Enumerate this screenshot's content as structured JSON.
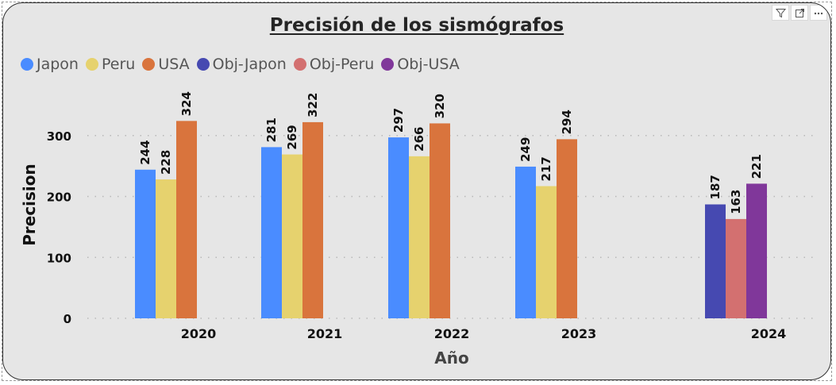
{
  "toolbar": {
    "icons": [
      "filter-icon",
      "focus-mode-icon",
      "more-options-icon"
    ]
  },
  "chart_data": {
    "type": "bar",
    "title": "Precisión de los sismógrafos",
    "xlabel": "Año",
    "ylabel": "Precision",
    "categories": [
      "2020",
      "2021",
      "2022",
      "2023",
      "2024"
    ],
    "yticks": [
      0,
      100,
      200,
      300
    ],
    "ylim": [
      0,
      340
    ],
    "grid": true,
    "legend_position": "top-left",
    "series": [
      {
        "name": "Japon",
        "color": "#4a8cff",
        "values": [
          244,
          281,
          297,
          249,
          null
        ]
      },
      {
        "name": "Peru",
        "color": "#e6d26e",
        "values": [
          228,
          269,
          266,
          217,
          null
        ]
      },
      {
        "name": "USA",
        "color": "#d9743d",
        "values": [
          324,
          322,
          320,
          294,
          null
        ]
      },
      {
        "name": "Obj-Japon",
        "color": "#4649b1",
        "values": [
          null,
          null,
          null,
          null,
          187
        ]
      },
      {
        "name": "Obj-Peru",
        "color": "#d37070",
        "values": [
          null,
          null,
          null,
          null,
          163
        ]
      },
      {
        "name": "Obj-USA",
        "color": "#80379a",
        "values": [
          null,
          null,
          null,
          null,
          221
        ]
      }
    ]
  }
}
